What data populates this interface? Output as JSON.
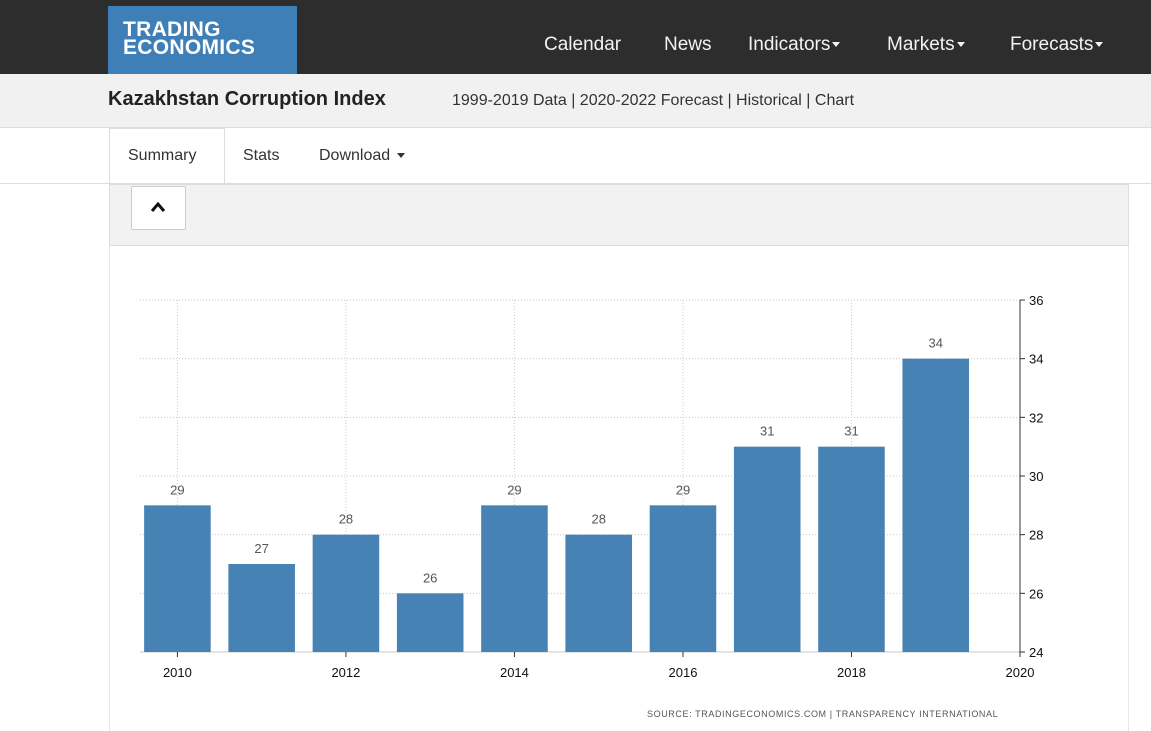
{
  "brand": {
    "line1": "TRADING",
    "line2": "ECONOMICS",
    "color": "#3f7fb8"
  },
  "nav": {
    "calendar": "Calendar",
    "news": "News",
    "indicators": "Indicators",
    "markets": "Markets",
    "forecasts": "Forecasts"
  },
  "page": {
    "title": "Kazakhstan Corruption Index",
    "subtitle": "1999-2019 Data | 2020-2022 Forecast | Historical | Chart"
  },
  "tabs": {
    "summary": "Summary",
    "stats": "Stats",
    "download": "Download"
  },
  "icons": {
    "collapse": "chevron-up-icon",
    "dropdown": "caret-down-icon"
  },
  "chart_data": {
    "type": "bar",
    "title": "",
    "xlabel": "",
    "ylabel": "",
    "categories": [
      2010,
      2011,
      2012,
      2013,
      2014,
      2015,
      2016,
      2017,
      2018,
      2019
    ],
    "values": [
      29,
      27,
      28,
      26,
      29,
      28,
      29,
      31,
      31,
      34
    ],
    "xlim": [
      2009.2,
      2020
    ],
    "x_ticks": [
      2010,
      2012,
      2014,
      2016,
      2018,
      2020
    ],
    "ylim": [
      24,
      36
    ],
    "y_ticks": [
      24,
      26,
      28,
      30,
      32,
      34,
      36
    ],
    "y_axis_side": "right",
    "grid": true,
    "bar_color": "#4682b4",
    "data_labels": true
  },
  "source": "SOURCE: TRADINGECONOMICS.COM | TRANSPARENCY INTERNATIONAL"
}
